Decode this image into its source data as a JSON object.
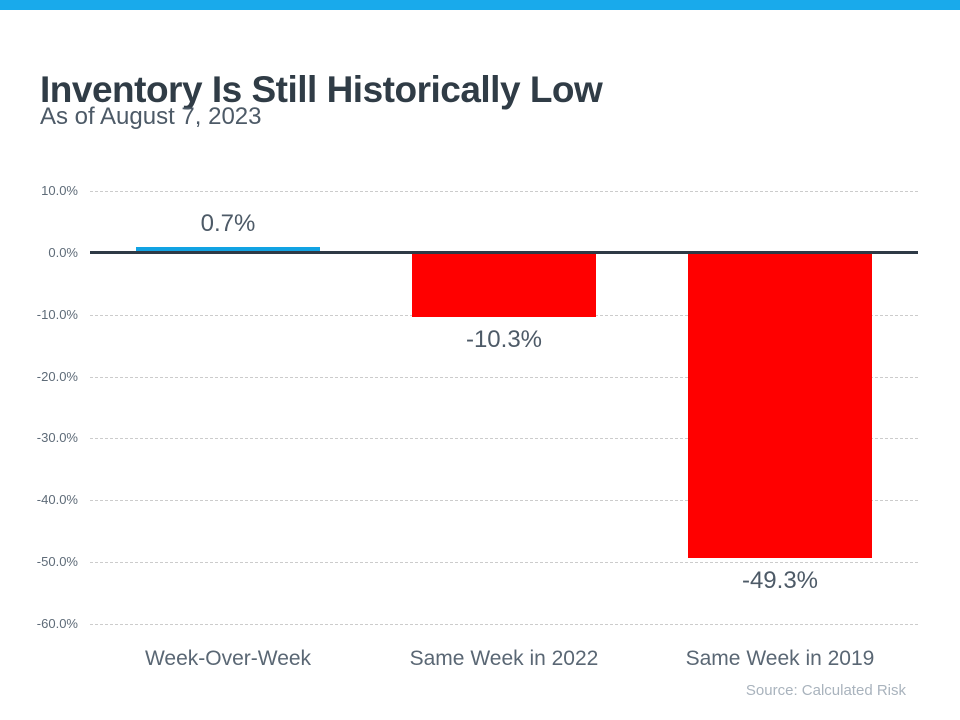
{
  "page": {
    "title": "Inventory Is Still Historically Low",
    "subtitle": "As of August 7, 2023",
    "source": "Source: Calculated Risk"
  },
  "colors": {
    "header_band": "#19aaeb",
    "positive_bar": "#12a3e3",
    "negative_bar": "#ff0000",
    "zero_line": "#2e3a46",
    "grid_line": "#cccccc"
  },
  "chart_data": {
    "type": "bar",
    "title": "Inventory Is Still Historically Low",
    "subtitle": "As of August 7, 2023",
    "categories": [
      "Week-Over-Week",
      "Same Week in 2022",
      "Same Week in 2019"
    ],
    "values": [
      0.7,
      -10.3,
      -49.3
    ],
    "data_labels": [
      "0.7%",
      "-10.3%",
      "-49.3%"
    ],
    "bar_colors": [
      "#12a3e3",
      "#ff0000",
      "#ff0000"
    ],
    "y_ticks": [
      10,
      0,
      -10,
      -20,
      -30,
      -40,
      -50,
      -60
    ],
    "y_tick_labels": [
      "10.0%",
      "0.0%",
      "-10.0%",
      "-20.0%",
      "-30.0%",
      "-40.0%",
      "-50.0%",
      "-60.0%"
    ],
    "ylim": [
      -60,
      10
    ],
    "xlabel": "",
    "ylabel": "",
    "grid": true,
    "legend": "none",
    "annotation": "Source: Calculated Risk"
  }
}
